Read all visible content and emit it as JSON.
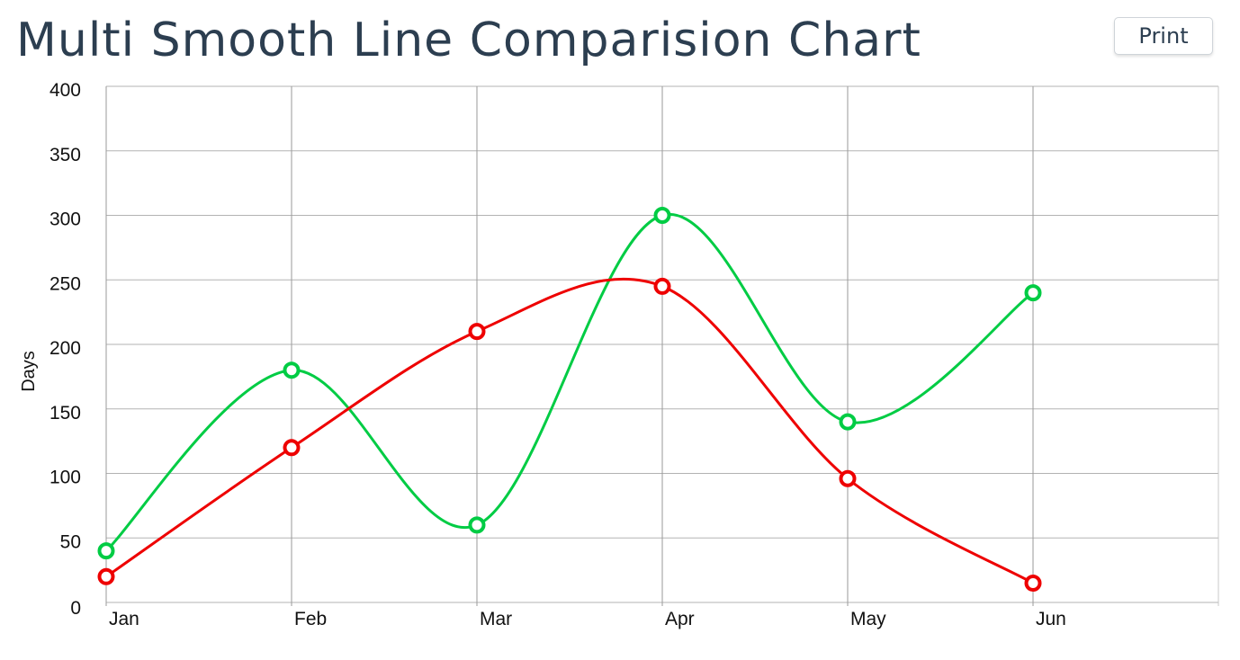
{
  "header": {
    "title": "Multi Smooth Line Comparision Chart",
    "print_label": "Print"
  },
  "chart_data": {
    "type": "line",
    "smooth": true,
    "categories": [
      "Jan",
      "Feb",
      "Mar",
      "Apr",
      "May",
      "Jun"
    ],
    "series": [
      {
        "color": "#00cc44",
        "values": [
          40,
          180,
          60,
          300,
          140,
          240
        ]
      },
      {
        "color": "#ee0000",
        "values": [
          20,
          120,
          210,
          245,
          96,
          15
        ]
      }
    ],
    "ylabel": "Days",
    "ylim": [
      0,
      400
    ],
    "yticks": [
      0,
      50,
      100,
      150,
      200,
      250,
      300,
      350,
      400
    ],
    "grid": true,
    "legend": false
  }
}
